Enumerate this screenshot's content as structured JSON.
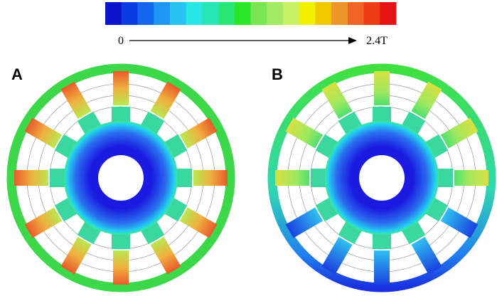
{
  "colorbar": {
    "min_label": "0",
    "max_label": "2.4T"
  },
  "panels": [
    {
      "label": "A"
    },
    {
      "label": "B"
    }
  ]
}
